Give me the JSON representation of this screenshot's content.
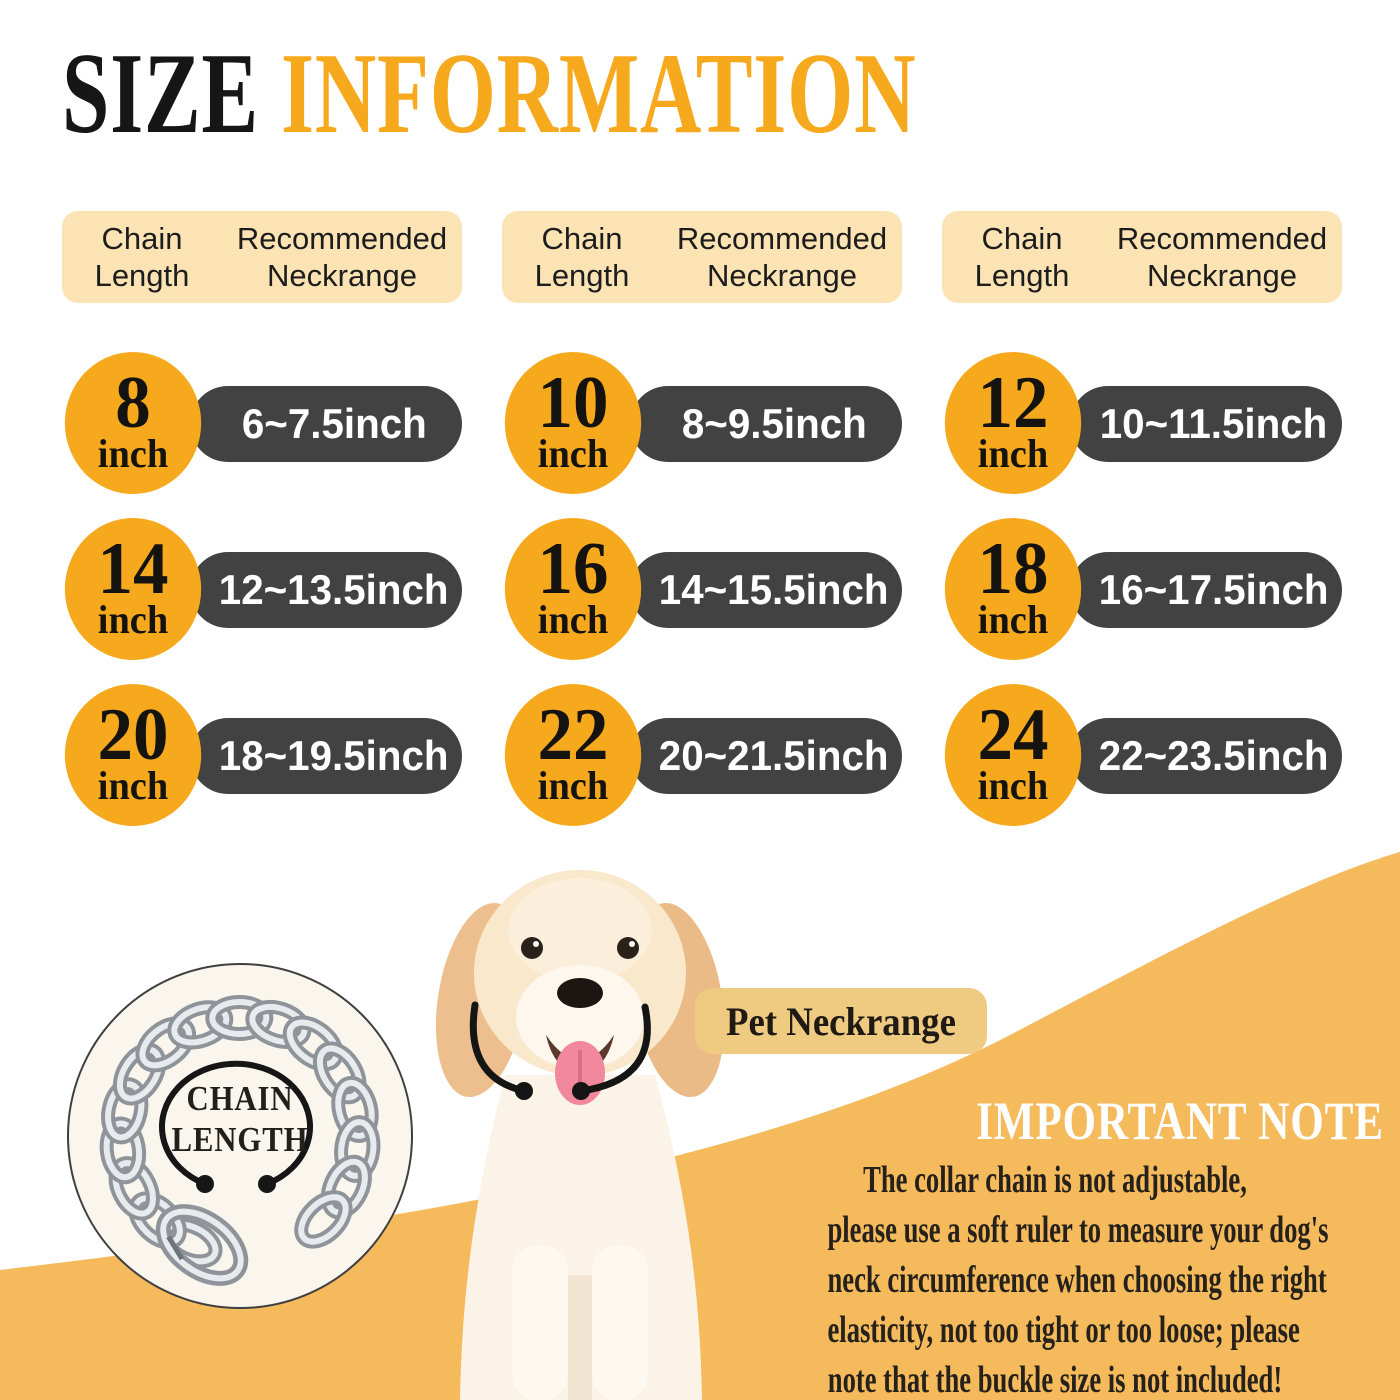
{
  "title": {
    "word_black": "SIZE ",
    "word_orange": "INFORMATION"
  },
  "table_header": {
    "col1_line1": "Chain",
    "col1_line2": "Length",
    "col2_line1": "Recommended",
    "col2_line2": "Neckrange"
  },
  "sizes": [
    {
      "chain": "8",
      "unit": "inch",
      "neck": "6~7.5inch"
    },
    {
      "chain": "10",
      "unit": "inch",
      "neck": "8~9.5inch"
    },
    {
      "chain": "12",
      "unit": "inch",
      "neck": "10~11.5inch"
    },
    {
      "chain": "14",
      "unit": "inch",
      "neck": "12~13.5inch"
    },
    {
      "chain": "16",
      "unit": "inch",
      "neck": "14~15.5inch"
    },
    {
      "chain": "18",
      "unit": "inch",
      "neck": "16~17.5inch"
    },
    {
      "chain": "20",
      "unit": "inch",
      "neck": "18~19.5inch"
    },
    {
      "chain": "22",
      "unit": "inch",
      "neck": "20~21.5inch"
    },
    {
      "chain": "24",
      "unit": "inch",
      "neck": "22~23.5inch"
    }
  ],
  "chain_badge": {
    "line1": "CHAIN",
    "line2": "LENGTH"
  },
  "pet_neckrange": {
    "label": "Pet Neckrange"
  },
  "important_note": {
    "title": "IMPORTANT NOTE",
    "lines": [
      "The collar chain is not adjustable,",
      "please use a soft ruler to measure your dog's",
      "neck circumference when choosing the right",
      "elasticity, not too tight or too loose; please",
      "note that the buckle size is not included!"
    ]
  },
  "colors": {
    "accent_orange": "#F7A91E",
    "swoosh_orange": "#F5BA5C",
    "header_bg": "#FBE3B4",
    "pill_dark": "#424242",
    "label_tan": "#EFCB81"
  }
}
